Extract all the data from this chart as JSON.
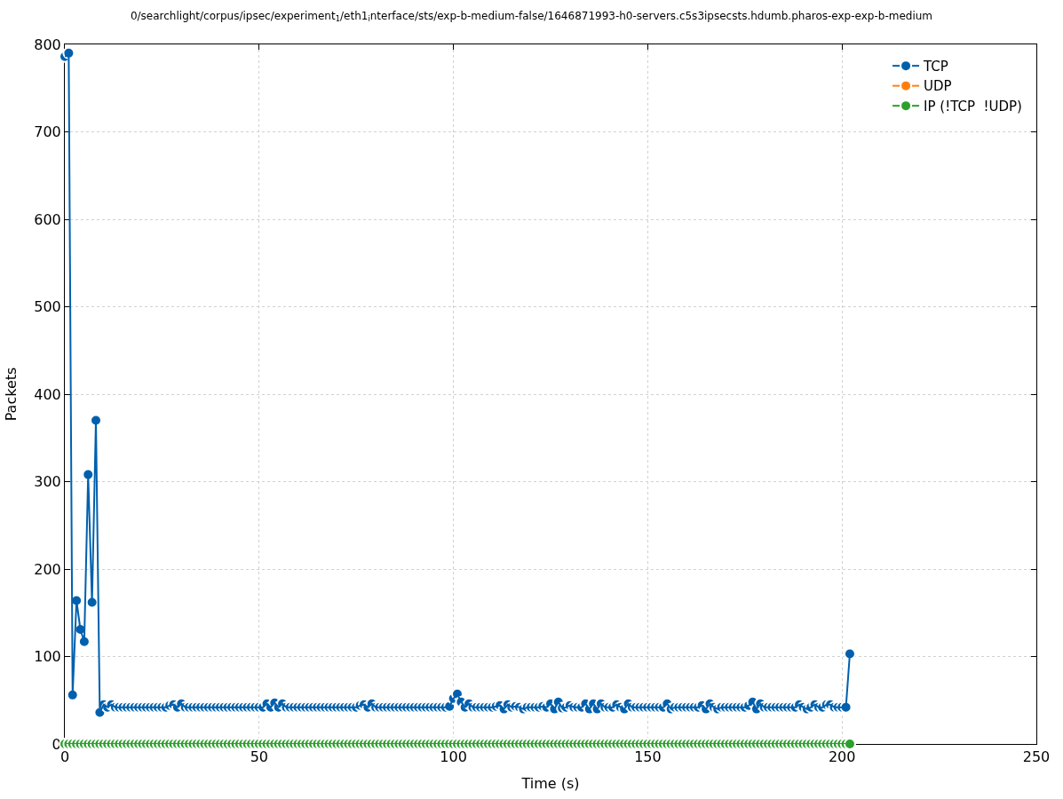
{
  "chart_data": {
    "type": "line",
    "title": "0/searchlight/corpus/ipsec/experiment$_{1}$/eth1$_{i}$nterface/sts/exp-b-medium-false/1646871993-h0-servers.c5s3ipsecsts.hdumb.pharos-exp-exp-b-medium",
    "xlabel": "Time (s)",
    "ylabel": "Packets",
    "x": [
      0,
      1,
      2,
      3,
      4,
      5,
      6,
      7,
      8,
      9,
      10,
      11,
      12,
      13,
      14,
      15,
      16,
      17,
      18,
      19,
      20,
      21,
      22,
      23,
      24,
      25,
      26,
      27,
      28,
      29,
      30,
      31,
      32,
      33,
      34,
      35,
      36,
      37,
      38,
      39,
      40,
      41,
      42,
      43,
      44,
      45,
      46,
      47,
      48,
      49,
      50,
      51,
      52,
      53,
      54,
      55,
      56,
      57,
      58,
      59,
      60,
      61,
      62,
      63,
      64,
      65,
      66,
      67,
      68,
      69,
      70,
      71,
      72,
      73,
      74,
      75,
      76,
      77,
      78,
      79,
      80,
      81,
      82,
      83,
      84,
      85,
      86,
      87,
      88,
      89,
      90,
      91,
      92,
      93,
      94,
      95,
      96,
      97,
      98,
      99,
      100,
      101,
      102,
      103,
      104,
      105,
      106,
      107,
      108,
      109,
      110,
      111,
      112,
      113,
      114,
      115,
      116,
      117,
      118,
      119,
      120,
      121,
      122,
      123,
      124,
      125,
      126,
      127,
      128,
      129,
      130,
      131,
      132,
      133,
      134,
      135,
      136,
      137,
      138,
      139,
      140,
      141,
      142,
      143,
      144,
      145,
      146,
      147,
      148,
      149,
      150,
      151,
      152,
      153,
      154,
      155,
      156,
      157,
      158,
      159,
      160,
      161,
      162,
      163,
      164,
      165,
      166,
      167,
      168,
      169,
      170,
      171,
      172,
      173,
      174,
      175,
      176,
      177,
      178,
      179,
      180,
      181,
      182,
      183,
      184,
      185,
      186,
      187,
      188,
      189,
      190,
      191,
      192,
      193,
      194,
      195,
      196,
      197,
      198,
      199,
      200,
      201,
      202
    ],
    "series": [
      {
        "name": "TCP",
        "color": "#0060ad",
        "values": [
          786,
          790,
          56,
          164,
          131,
          117,
          308,
          162,
          370,
          36,
          45,
          42,
          45,
          42,
          42,
          42,
          42,
          42,
          42,
          42,
          42,
          42,
          42,
          42,
          42,
          42,
          42,
          44,
          45,
          42,
          46,
          42,
          42,
          42,
          42,
          42,
          42,
          42,
          42,
          42,
          42,
          42,
          42,
          42,
          42,
          42,
          42,
          42,
          42,
          42,
          42,
          42,
          46,
          42,
          47,
          42,
          46,
          42,
          42,
          42,
          42,
          42,
          42,
          42,
          42,
          42,
          42,
          42,
          42,
          42,
          42,
          42,
          42,
          42,
          42,
          42,
          44,
          45,
          42,
          46,
          42,
          42,
          42,
          42,
          42,
          42,
          42,
          42,
          42,
          42,
          42,
          42,
          42,
          42,
          42,
          42,
          42,
          42,
          42,
          43,
          52,
          57,
          48,
          42,
          46,
          42,
          42,
          42,
          42,
          42,
          42,
          43,
          44,
          40,
          45,
          42,
          43,
          42,
          40,
          42,
          42,
          42,
          42,
          43,
          42,
          46,
          40,
          48,
          41,
          42,
          44,
          42,
          42,
          42,
          46,
          40,
          46,
          40,
          46,
          42,
          42,
          42,
          45,
          42,
          40,
          46,
          42,
          42,
          42,
          42,
          42,
          42,
          42,
          42,
          42,
          46,
          40,
          42,
          42,
          42,
          42,
          42,
          42,
          42,
          44,
          40,
          46,
          42,
          40,
          42,
          42,
          42,
          42,
          42,
          42,
          42,
          44,
          48,
          40,
          46,
          42,
          42,
          42,
          42,
          42,
          42,
          42,
          42,
          42,
          45,
          42,
          40,
          42,
          45,
          42,
          42,
          45,
          45,
          42,
          42,
          42,
          42,
          103
        ]
      },
      {
        "name": "UDP",
        "color": "#ff7f0e",
        "values": [
          null,
          null,
          null,
          null,
          null,
          null,
          null,
          null,
          null,
          null,
          null,
          null,
          null,
          null,
          null,
          null,
          null,
          null,
          null,
          null,
          null,
          null,
          null,
          null,
          null,
          null,
          null,
          null,
          null,
          null,
          null,
          null,
          null,
          null,
          null,
          null,
          null,
          null,
          null,
          null,
          null,
          null,
          null,
          null,
          null,
          null,
          null,
          null,
          null,
          null,
          null,
          null,
          null,
          null,
          null,
          null,
          null,
          null,
          null,
          null,
          null,
          null,
          null,
          null,
          null,
          null,
          null,
          null,
          null,
          null,
          null,
          null,
          null,
          null,
          null,
          null,
          null,
          null,
          null,
          null,
          null,
          null,
          null,
          null,
          null,
          null,
          null,
          null,
          null,
          null,
          null,
          null,
          null,
          null,
          null,
          null,
          null,
          null,
          null,
          null,
          null,
          null,
          null,
          null,
          null,
          null,
          null,
          null,
          null,
          null,
          null,
          null,
          null,
          null,
          null,
          null,
          null,
          null,
          null,
          null,
          null,
          null,
          null,
          null,
          null,
          null,
          null,
          null,
          null,
          null,
          null,
          null,
          null,
          null,
          null,
          null,
          null,
          null,
          null,
          null,
          null,
          null,
          null,
          null,
          null,
          null,
          null,
          null,
          null,
          null,
          null,
          null,
          null,
          null,
          null,
          null,
          null,
          null,
          null,
          null,
          null,
          null,
          null,
          null,
          null,
          null,
          null,
          null,
          null,
          null,
          null,
          null,
          null,
          null,
          null,
          null,
          null,
          null,
          null,
          null,
          null,
          null,
          null,
          null,
          null,
          null,
          null,
          null,
          null,
          null,
          null,
          null,
          null,
          null,
          null,
          null,
          null,
          null,
          null,
          null,
          null,
          null,
          null
        ]
      },
      {
        "name": "IP (!TCP  !UDP)",
        "color": "#2ca02c",
        "values": [
          0,
          0,
          0,
          0,
          0,
          0,
          0,
          0,
          0,
          0,
          0,
          0,
          0,
          0,
          0,
          0,
          0,
          0,
          0,
          0,
          0,
          0,
          0,
          0,
          0,
          0,
          0,
          0,
          0,
          0,
          0,
          0,
          0,
          0,
          0,
          0,
          0,
          0,
          0,
          0,
          0,
          0,
          0,
          0,
          0,
          0,
          0,
          0,
          0,
          0,
          0,
          0,
          0,
          0,
          0,
          0,
          0,
          0,
          0,
          0,
          0,
          0,
          0,
          0,
          0,
          0,
          0,
          0,
          0,
          0,
          0,
          0,
          0,
          0,
          0,
          0,
          0,
          0,
          0,
          0,
          0,
          0,
          0,
          0,
          0,
          0,
          0,
          0,
          0,
          0,
          0,
          0,
          0,
          0,
          0,
          0,
          0,
          0,
          0,
          0,
          0,
          0,
          0,
          0,
          0,
          0,
          0,
          0,
          0,
          0,
          0,
          0,
          0,
          0,
          0,
          0,
          0,
          0,
          0,
          0,
          0,
          0,
          0,
          0,
          0,
          0,
          0,
          0,
          0,
          0,
          0,
          0,
          0,
          0,
          0,
          0,
          0,
          0,
          0,
          0,
          0,
          0,
          0,
          0,
          0,
          0,
          0,
          0,
          0,
          0,
          0,
          0,
          0,
          0,
          0,
          0,
          0,
          0,
          0,
          0,
          0,
          0,
          0,
          0,
          0,
          0,
          0,
          0,
          0,
          0,
          0,
          0,
          0,
          0,
          0,
          0,
          0,
          0,
          0,
          0,
          0,
          0,
          0,
          0,
          0,
          0,
          0,
          0,
          0,
          0,
          0,
          0,
          0,
          0,
          0,
          0,
          0,
          0,
          0,
          0,
          0,
          0,
          0
        ]
      }
    ],
    "xlim": [
      0,
      250
    ],
    "xticks": [
      0,
      50,
      100,
      150,
      200,
      250
    ],
    "ylim": [
      0,
      800
    ],
    "yticks": [
      0,
      100,
      200,
      300,
      400,
      500,
      600,
      700,
      800
    ],
    "grid": true,
    "legend": "top right",
    "marker": "circle",
    "line_style": "solid"
  }
}
